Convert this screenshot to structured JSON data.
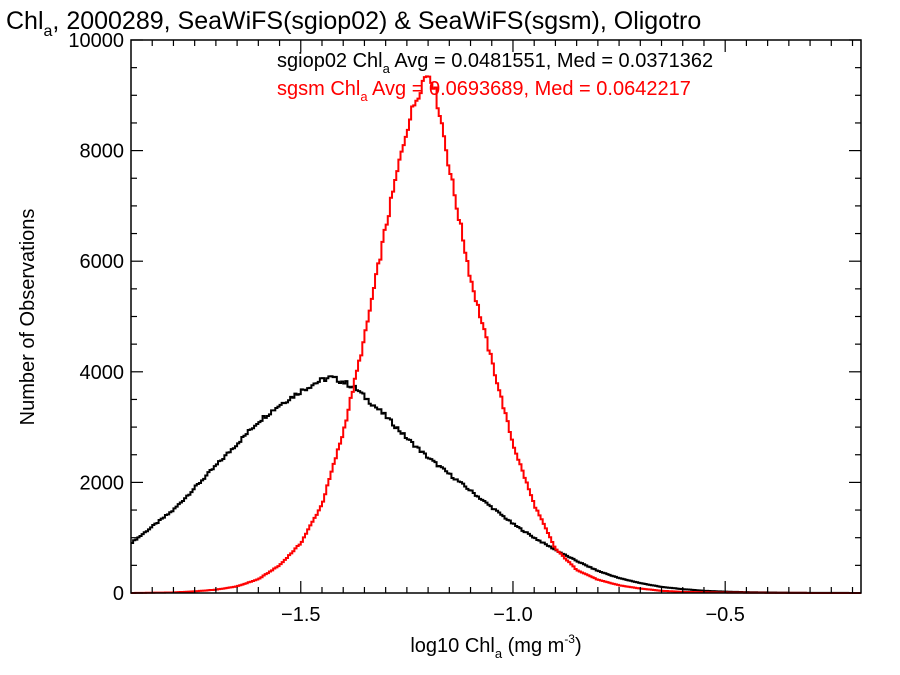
{
  "chart_data": {
    "type": "line",
    "step": true,
    "title": {
      "prefix": "Chl",
      "sub": "a",
      "rest": ", 2000289, SeaWiFS(sgiop02) & SeaWiFS(sgsm), Oligotro"
    },
    "xlabel": {
      "prefix": "log10 Chl",
      "sub": "a",
      "mid": " (mg m",
      "sup": "-3",
      "suffix": ")"
    },
    "ylabel": "Number of Observations",
    "xlim": [
      -1.9,
      -0.18
    ],
    "ylim": [
      0,
      10000
    ],
    "xticks": [
      -1.5,
      -1.0,
      -0.5
    ],
    "xtick_labels": [
      "−1.5",
      "−1.0",
      "−0.5"
    ],
    "yticks": [
      0,
      2000,
      4000,
      6000,
      8000,
      10000
    ],
    "ytick_labels": [
      "0",
      "2000",
      "4000",
      "6000",
      "8000",
      "10000"
    ],
    "grid": false,
    "annotations": [
      {
        "prefix": "sgiop02 Chl",
        "sub": "a",
        "rest": " Avg = 0.0481551, Med = 0.0371362",
        "color": "#000000"
      },
      {
        "prefix": "sgsm Chl",
        "sub": "a",
        "rest": " Avg = 0.0693689, Med = 0.0642217",
        "color": "#ff0000"
      }
    ],
    "series": [
      {
        "color": "#000000",
        "x": [
          -1.9,
          -1.85,
          -1.8,
          -1.75,
          -1.7,
          -1.65,
          -1.6,
          -1.55,
          -1.5,
          -1.47,
          -1.45,
          -1.43,
          -1.4,
          -1.37,
          -1.35,
          -1.3,
          -1.25,
          -1.2,
          -1.15,
          -1.1,
          -1.05,
          -1.0,
          -0.95,
          -0.9,
          -0.85,
          -0.8,
          -0.75,
          -0.7,
          -0.65,
          -0.6,
          -0.55,
          -0.5,
          -0.45,
          -0.4,
          -0.35,
          -0.3,
          -0.25,
          -0.2,
          -0.18
        ],
        "y": [
          900,
          1200,
          1500,
          1900,
          2300,
          2700,
          3100,
          3400,
          3650,
          3780,
          3850,
          3900,
          3820,
          3700,
          3550,
          3200,
          2800,
          2450,
          2150,
          1850,
          1550,
          1250,
          1000,
          780,
          580,
          400,
          270,
          180,
          110,
          70,
          40,
          25,
          15,
          10,
          5,
          3,
          2,
          1,
          1
        ]
      },
      {
        "color": "#ff0000",
        "x": [
          -1.9,
          -1.8,
          -1.75,
          -1.7,
          -1.65,
          -1.6,
          -1.55,
          -1.5,
          -1.45,
          -1.4,
          -1.35,
          -1.3,
          -1.27,
          -1.25,
          -1.23,
          -1.21,
          -1.2,
          -1.19,
          -1.17,
          -1.15,
          -1.12,
          -1.1,
          -1.05,
          -1.0,
          -0.95,
          -0.9,
          -0.85,
          -0.8,
          -0.75,
          -0.7,
          -0.65,
          -0.6,
          -0.5,
          -0.4,
          -0.3,
          -0.18
        ],
        "y": [
          0,
          10,
          30,
          60,
          120,
          250,
          500,
          900,
          1600,
          2900,
          4600,
          6600,
          7700,
          8400,
          8900,
          9300,
          9400,
          9300,
          8600,
          7700,
          6500,
          5700,
          4200,
          2700,
          1600,
          800,
          420,
          240,
          140,
          80,
          40,
          20,
          8,
          3,
          1,
          0
        ]
      }
    ]
  }
}
